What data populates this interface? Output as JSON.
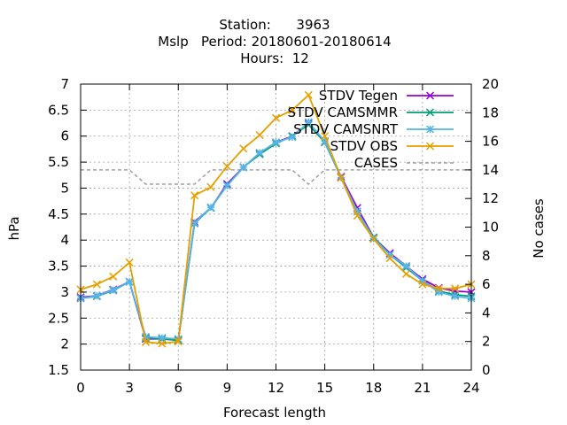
{
  "chart_data": {
    "type": "line",
    "title_lines": [
      "Station:      3963",
      "Mslp   Period: 20180601-20180614",
      "Hours:  12"
    ],
    "xlabel": "Forecast length",
    "ylabel": "hPa",
    "y2label": "No cases",
    "xlim": [
      0,
      24
    ],
    "ylim": [
      1.5,
      7
    ],
    "y2lim": [
      0,
      20
    ],
    "xticks": [
      0,
      3,
      6,
      9,
      12,
      15,
      18,
      21,
      24
    ],
    "yticks": [
      1.5,
      2,
      2.5,
      3,
      3.5,
      4,
      4.5,
      5,
      5.5,
      6,
      6.5,
      7
    ],
    "y2ticks": [
      0,
      2,
      4,
      6,
      8,
      10,
      12,
      14,
      16,
      18,
      20
    ],
    "grid": true,
    "legend_position": "top-right",
    "x": [
      0,
      1,
      2,
      3,
      4,
      5,
      6,
      7,
      8,
      9,
      10,
      11,
      12,
      13,
      14,
      15,
      16,
      17,
      18,
      19,
      20,
      21,
      22,
      23,
      24
    ],
    "series": [
      {
        "name": "STDV Tegen",
        "color": "#9400d3",
        "marker": "x",
        "values": [
          2.9,
          2.93,
          3.05,
          3.2,
          2.1,
          2.1,
          2.08,
          4.35,
          4.62,
          5.08,
          5.4,
          5.67,
          5.88,
          6.0,
          6.25,
          5.9,
          5.22,
          4.62,
          4.05,
          3.75,
          3.5,
          3.25,
          3.08,
          3.02,
          3.0
        ]
      },
      {
        "name": "STDV CAMSMMR",
        "color": "#009e73",
        "marker": "x",
        "values": [
          2.88,
          2.92,
          3.03,
          3.2,
          2.12,
          2.1,
          2.07,
          4.32,
          4.62,
          5.05,
          5.4,
          5.65,
          5.86,
          6.0,
          6.22,
          5.88,
          5.2,
          4.55,
          4.05,
          3.72,
          3.47,
          3.22,
          3.02,
          2.95,
          2.92
        ]
      },
      {
        "name": "STDV CAMSNRT",
        "color": "#56b4e9",
        "marker": "star",
        "values": [
          2.88,
          2.93,
          3.04,
          3.2,
          2.14,
          2.12,
          2.1,
          4.33,
          4.63,
          5.05,
          5.4,
          5.68,
          5.88,
          5.98,
          6.27,
          5.9,
          5.2,
          4.55,
          4.03,
          3.72,
          3.5,
          3.22,
          3.0,
          2.92,
          2.88
        ]
      },
      {
        "name": "STDV OBS",
        "color": "#e69f00",
        "marker": "x",
        "values": [
          3.05,
          3.15,
          3.3,
          3.57,
          2.04,
          2.01,
          2.05,
          4.86,
          5.02,
          5.42,
          5.76,
          6.02,
          6.35,
          6.5,
          6.79,
          6.0,
          5.2,
          4.47,
          4.02,
          3.65,
          3.35,
          3.15,
          3.07,
          3.07,
          3.15
        ]
      }
    ],
    "cases_series": {
      "name": "CASES",
      "color": "#a0a0a0",
      "axis": "y2",
      "values": [
        14,
        14,
        14,
        14,
        13,
        13,
        13,
        13,
        14,
        14,
        14,
        14,
        14,
        14,
        13,
        14,
        14,
        14,
        14,
        14,
        14,
        14,
        14,
        14,
        14
      ]
    }
  }
}
